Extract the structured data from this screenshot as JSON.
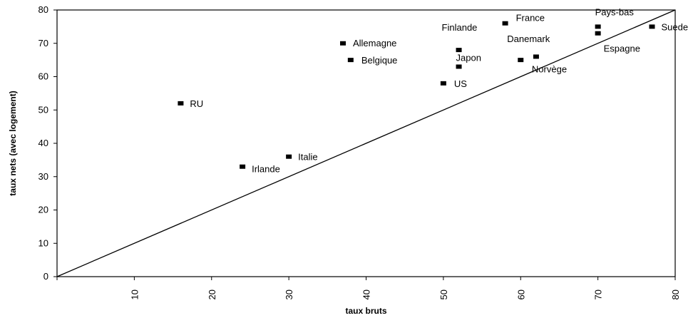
{
  "chart_data": {
    "type": "scatter",
    "xlabel": "taux bruts",
    "ylabel": "taux nets (avec logement)",
    "xlim": [
      0,
      80
    ],
    "ylim": [
      0,
      80
    ],
    "x_ticks": [
      10,
      20,
      30,
      40,
      50,
      60,
      70,
      80
    ],
    "y_ticks": [
      0,
      10,
      20,
      30,
      40,
      50,
      60,
      70,
      80
    ],
    "grid": false,
    "reference_line": {
      "from": [
        0,
        0
      ],
      "to": [
        80,
        80
      ]
    },
    "points": [
      {
        "label": "RU",
        "x": 16,
        "y": 52
      },
      {
        "label": "Irlande",
        "x": 24,
        "y": 33
      },
      {
        "label": "Italie",
        "x": 30,
        "y": 36
      },
      {
        "label": "Allemagne",
        "x": 37,
        "y": 70
      },
      {
        "label": "Belgique",
        "x": 38,
        "y": 65
      },
      {
        "label": "US",
        "x": 50,
        "y": 58
      },
      {
        "label": "Japon",
        "x": 52,
        "y": 63
      },
      {
        "label": "Finlande",
        "x": 52,
        "y": 68
      },
      {
        "label": "France",
        "x": 58,
        "y": 76
      },
      {
        "label": "Danemark",
        "x": 60,
        "y": 65
      },
      {
        "label": "Norvège",
        "x": 62,
        "y": 66
      },
      {
        "label": "Pays-bas",
        "x": 70,
        "y": 75
      },
      {
        "label": "Espagne",
        "x": 70,
        "y": 73
      },
      {
        "label": "Suede",
        "x": 77,
        "y": 75
      }
    ]
  }
}
